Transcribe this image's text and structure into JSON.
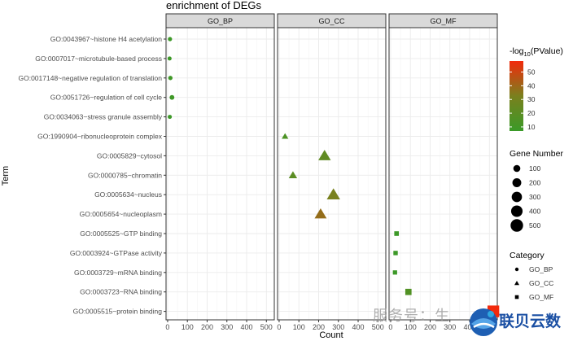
{
  "chart_data": {
    "type": "scatter",
    "title": "enrichment of DEGs",
    "xlabel": "Count",
    "ylabel": "Term",
    "xlim": [
      -8,
      540
    ],
    "xticks": [
      0,
      100,
      200,
      300,
      400,
      500
    ],
    "xtick_labels": [
      "0",
      "100",
      "200",
      "300",
      "400",
      "500"
    ],
    "facets": [
      "GO_BP",
      "GO_CC",
      "GO_MF"
    ],
    "terms": [
      "GO:0043967~histone H4 acetylation",
      "GO:0007017~microtubule-based process",
      "GO:0017148~negative regulation of translation",
      "GO:0051726~regulation of cell cycle",
      "GO:0034063~stress granule assembly",
      "GO:1990904~ribonucleoprotein complex",
      "GO:0005829~cytosol",
      "GO:0000785~chromatin",
      "GO:0005634~nucleus",
      "GO:0005654~nucleoplasm",
      "GO:0005525~GTP binding",
      "GO:0003924~GTPase activity",
      "GO:0003729~mRNA binding",
      "GO:0003723~RNA binding",
      "GO:0005515~protein binding"
    ],
    "points": [
      {
        "term": "GO:0043967~histone H4 acetylation",
        "category": "GO_BP",
        "count": 12,
        "pvalue_log10": 8
      },
      {
        "term": "GO:0007017~microtubule-based process",
        "category": "GO_BP",
        "count": 10,
        "pvalue_log10": 8
      },
      {
        "term": "GO:0017148~negative regulation of translation",
        "category": "GO_BP",
        "count": 14,
        "pvalue_log10": 9
      },
      {
        "term": "GO:0051726~regulation of cell cycle",
        "category": "GO_BP",
        "count": 22,
        "pvalue_log10": 9
      },
      {
        "term": "GO:0034063~stress granule assembly",
        "category": "GO_BP",
        "count": 11,
        "pvalue_log10": 8
      },
      {
        "term": "GO:1990904~ribonucleoprotein complex",
        "category": "GO_CC",
        "count": 30,
        "pvalue_log10": 14
      },
      {
        "term": "GO:0005829~cytosol",
        "category": "GO_CC",
        "count": 230,
        "pvalue_log10": 22
      },
      {
        "term": "GO:0000785~chromatin",
        "category": "GO_CC",
        "count": 70,
        "pvalue_log10": 20
      },
      {
        "term": "GO:0005634~nucleus",
        "category": "GO_CC",
        "count": 275,
        "pvalue_log10": 32
      },
      {
        "term": "GO:0005654~nucleoplasm",
        "category": "GO_CC",
        "count": 210,
        "pvalue_log10": 38
      },
      {
        "term": "GO:0005525~GTP binding",
        "category": "GO_MF",
        "count": 30,
        "pvalue_log10": 8
      },
      {
        "term": "GO:0003924~GTPase activity",
        "category": "GO_MF",
        "count": 25,
        "pvalue_log10": 8
      },
      {
        "term": "GO:0003729~mRNA binding",
        "category": "GO_MF",
        "count": 22,
        "pvalue_log10": 8
      },
      {
        "term": "GO:0003723~RNA binding",
        "category": "GO_MF",
        "count": 90,
        "pvalue_log10": 16
      },
      {
        "term": "GO:0005515~protein binding",
        "category": "GO_MF",
        "count": 520,
        "pvalue_log10": 58
      }
    ],
    "color_legend": {
      "title": "-log10(PValue)",
      "ticks": [
        10,
        20,
        30,
        40,
        50
      ],
      "min": 7,
      "max": 58,
      "low_color": "#3a9a28",
      "high_color": "#f22a0c"
    },
    "size_legend": {
      "title": "Gene Number",
      "values": [
        100,
        200,
        300,
        400,
        500
      ],
      "labels": [
        "100",
        "200",
        "300",
        "400",
        "500"
      ]
    },
    "shape_legend": {
      "title": "Category",
      "items": [
        {
          "label": "GO_BP",
          "shape": "circle"
        },
        {
          "label": "GO_CC",
          "shape": "triangle"
        },
        {
          "label": "GO_MF",
          "shape": "square"
        }
      ]
    },
    "grid": true,
    "panel_background": "#ffffff",
    "strip_background": "#d9d9d9",
    "grid_color": "#ebebeb"
  },
  "watermark": {
    "text": "服务号：生",
    "logo_text": "联贝云数"
  }
}
